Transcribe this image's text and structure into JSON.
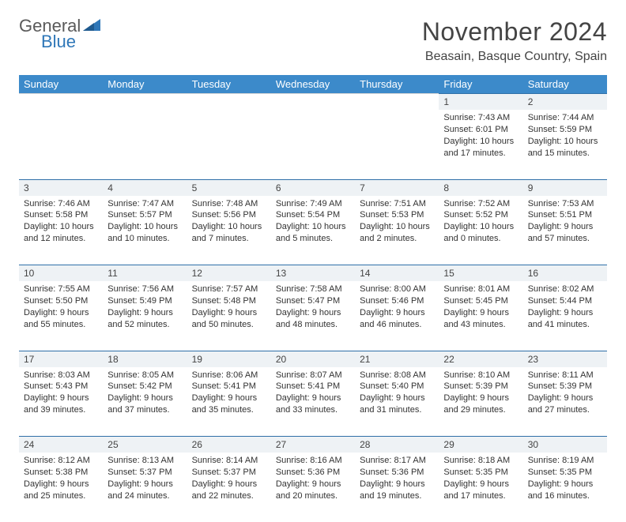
{
  "logo": {
    "general": "General",
    "blue": "Blue"
  },
  "title": "November 2024",
  "location": "Beasain, Basque Country, Spain",
  "colors": {
    "header_bg": "#3c8aca",
    "header_text": "#ffffff",
    "daynum_bg": "#eef2f5",
    "daynum_border": "#2f6fa8",
    "body_text": "#333333",
    "logo_gray": "#5a5a5a",
    "logo_blue": "#2f77b8"
  },
  "day_headers": [
    "Sunday",
    "Monday",
    "Tuesday",
    "Wednesday",
    "Thursday",
    "Friday",
    "Saturday"
  ],
  "weeks": [
    [
      null,
      null,
      null,
      null,
      null,
      {
        "n": "1",
        "sr": "Sunrise: 7:43 AM",
        "ss": "Sunset: 6:01 PM",
        "dl": "Daylight: 10 hours and 17 minutes."
      },
      {
        "n": "2",
        "sr": "Sunrise: 7:44 AM",
        "ss": "Sunset: 5:59 PM",
        "dl": "Daylight: 10 hours and 15 minutes."
      }
    ],
    [
      {
        "n": "3",
        "sr": "Sunrise: 7:46 AM",
        "ss": "Sunset: 5:58 PM",
        "dl": "Daylight: 10 hours and 12 minutes."
      },
      {
        "n": "4",
        "sr": "Sunrise: 7:47 AM",
        "ss": "Sunset: 5:57 PM",
        "dl": "Daylight: 10 hours and 10 minutes."
      },
      {
        "n": "5",
        "sr": "Sunrise: 7:48 AM",
        "ss": "Sunset: 5:56 PM",
        "dl": "Daylight: 10 hours and 7 minutes."
      },
      {
        "n": "6",
        "sr": "Sunrise: 7:49 AM",
        "ss": "Sunset: 5:54 PM",
        "dl": "Daylight: 10 hours and 5 minutes."
      },
      {
        "n": "7",
        "sr": "Sunrise: 7:51 AM",
        "ss": "Sunset: 5:53 PM",
        "dl": "Daylight: 10 hours and 2 minutes."
      },
      {
        "n": "8",
        "sr": "Sunrise: 7:52 AM",
        "ss": "Sunset: 5:52 PM",
        "dl": "Daylight: 10 hours and 0 minutes."
      },
      {
        "n": "9",
        "sr": "Sunrise: 7:53 AM",
        "ss": "Sunset: 5:51 PM",
        "dl": "Daylight: 9 hours and 57 minutes."
      }
    ],
    [
      {
        "n": "10",
        "sr": "Sunrise: 7:55 AM",
        "ss": "Sunset: 5:50 PM",
        "dl": "Daylight: 9 hours and 55 minutes."
      },
      {
        "n": "11",
        "sr": "Sunrise: 7:56 AM",
        "ss": "Sunset: 5:49 PM",
        "dl": "Daylight: 9 hours and 52 minutes."
      },
      {
        "n": "12",
        "sr": "Sunrise: 7:57 AM",
        "ss": "Sunset: 5:48 PM",
        "dl": "Daylight: 9 hours and 50 minutes."
      },
      {
        "n": "13",
        "sr": "Sunrise: 7:58 AM",
        "ss": "Sunset: 5:47 PM",
        "dl": "Daylight: 9 hours and 48 minutes."
      },
      {
        "n": "14",
        "sr": "Sunrise: 8:00 AM",
        "ss": "Sunset: 5:46 PM",
        "dl": "Daylight: 9 hours and 46 minutes."
      },
      {
        "n": "15",
        "sr": "Sunrise: 8:01 AM",
        "ss": "Sunset: 5:45 PM",
        "dl": "Daylight: 9 hours and 43 minutes."
      },
      {
        "n": "16",
        "sr": "Sunrise: 8:02 AM",
        "ss": "Sunset: 5:44 PM",
        "dl": "Daylight: 9 hours and 41 minutes."
      }
    ],
    [
      {
        "n": "17",
        "sr": "Sunrise: 8:03 AM",
        "ss": "Sunset: 5:43 PM",
        "dl": "Daylight: 9 hours and 39 minutes."
      },
      {
        "n": "18",
        "sr": "Sunrise: 8:05 AM",
        "ss": "Sunset: 5:42 PM",
        "dl": "Daylight: 9 hours and 37 minutes."
      },
      {
        "n": "19",
        "sr": "Sunrise: 8:06 AM",
        "ss": "Sunset: 5:41 PM",
        "dl": "Daylight: 9 hours and 35 minutes."
      },
      {
        "n": "20",
        "sr": "Sunrise: 8:07 AM",
        "ss": "Sunset: 5:41 PM",
        "dl": "Daylight: 9 hours and 33 minutes."
      },
      {
        "n": "21",
        "sr": "Sunrise: 8:08 AM",
        "ss": "Sunset: 5:40 PM",
        "dl": "Daylight: 9 hours and 31 minutes."
      },
      {
        "n": "22",
        "sr": "Sunrise: 8:10 AM",
        "ss": "Sunset: 5:39 PM",
        "dl": "Daylight: 9 hours and 29 minutes."
      },
      {
        "n": "23",
        "sr": "Sunrise: 8:11 AM",
        "ss": "Sunset: 5:39 PM",
        "dl": "Daylight: 9 hours and 27 minutes."
      }
    ],
    [
      {
        "n": "24",
        "sr": "Sunrise: 8:12 AM",
        "ss": "Sunset: 5:38 PM",
        "dl": "Daylight: 9 hours and 25 minutes."
      },
      {
        "n": "25",
        "sr": "Sunrise: 8:13 AM",
        "ss": "Sunset: 5:37 PM",
        "dl": "Daylight: 9 hours and 24 minutes."
      },
      {
        "n": "26",
        "sr": "Sunrise: 8:14 AM",
        "ss": "Sunset: 5:37 PM",
        "dl": "Daylight: 9 hours and 22 minutes."
      },
      {
        "n": "27",
        "sr": "Sunrise: 8:16 AM",
        "ss": "Sunset: 5:36 PM",
        "dl": "Daylight: 9 hours and 20 minutes."
      },
      {
        "n": "28",
        "sr": "Sunrise: 8:17 AM",
        "ss": "Sunset: 5:36 PM",
        "dl": "Daylight: 9 hours and 19 minutes."
      },
      {
        "n": "29",
        "sr": "Sunrise: 8:18 AM",
        "ss": "Sunset: 5:35 PM",
        "dl": "Daylight: 9 hours and 17 minutes."
      },
      {
        "n": "30",
        "sr": "Sunrise: 8:19 AM",
        "ss": "Sunset: 5:35 PM",
        "dl": "Daylight: 9 hours and 16 minutes."
      }
    ]
  ]
}
